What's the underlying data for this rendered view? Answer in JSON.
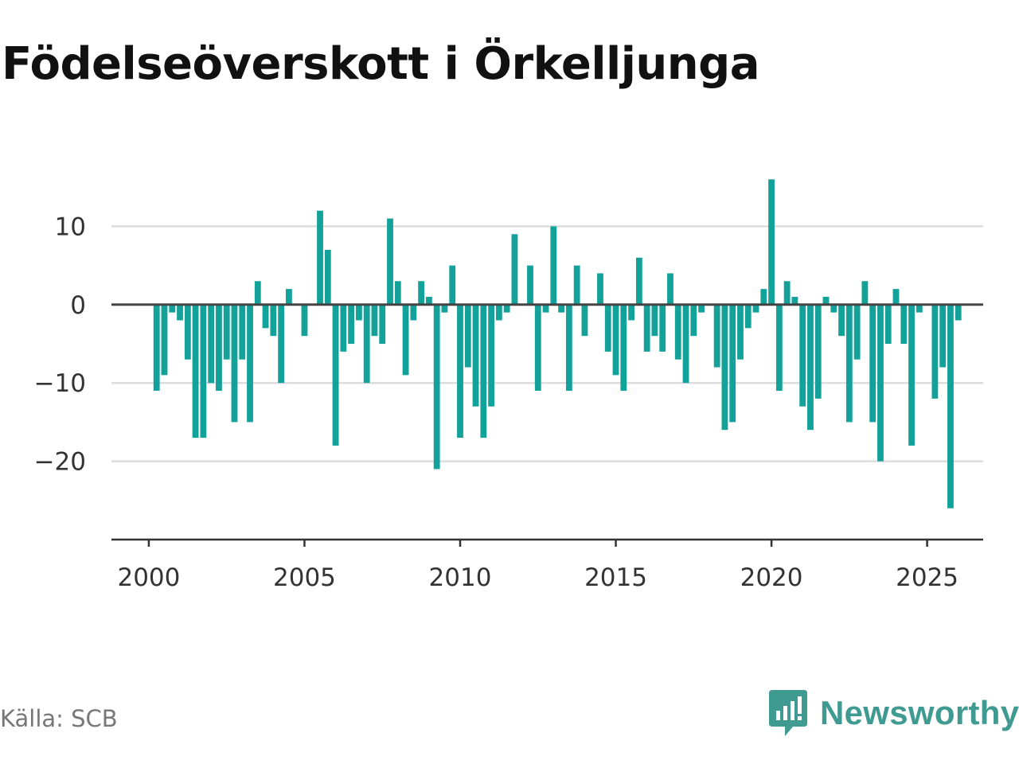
{
  "title": "Födelseöverskott i Örkelljunga",
  "source": "Källa: SCB",
  "brand": {
    "name": "Newsworthy",
    "icon": "newsworthy-logo-icon",
    "color": "#3f9a91"
  },
  "colors": {
    "bar": "#13a29a",
    "zero_line": "#444444",
    "grid": "#dddddd",
    "axis": "#333333"
  },
  "chart_data": {
    "type": "bar",
    "title": "Födelseöverskott i Örkelljunga",
    "xlabel": "",
    "ylabel": "",
    "x_ticks": [
      "2000",
      "2005",
      "2010",
      "2015",
      "2020",
      "2025"
    ],
    "y_ticks": [
      "10",
      "0",
      "−10",
      "−20"
    ],
    "ylim": [
      -30,
      20
    ],
    "xlim": [
      1998.8,
      2026.8
    ],
    "grid": true,
    "series": [
      {
        "start": "2000 Q2",
        "frequency": "quarterly",
        "values": [
          -11,
          -9,
          -1,
          -2,
          -7,
          -17,
          -17,
          -10,
          -11,
          -7,
          -15,
          -7,
          -15,
          3,
          -3,
          -4,
          -10,
          2,
          0,
          -4,
          0,
          12,
          7,
          -18,
          -6,
          -5,
          -2,
          -10,
          -4,
          -5,
          11,
          3,
          -9,
          -2,
          3,
          1,
          -21,
          -1,
          5,
          -17,
          -8,
          -13,
          -17,
          -13,
          -2,
          -1,
          9,
          0,
          5,
          -11,
          -1,
          10,
          -1,
          -11,
          5,
          -4,
          0,
          4,
          -6,
          -9,
          -11,
          -2,
          6,
          -6,
          -4,
          -6,
          4,
          -7,
          -10,
          -4,
          -1,
          0,
          -8,
          -16,
          -15,
          -7,
          -3,
          -1,
          2,
          16,
          -11,
          3,
          1,
          -13,
          -16,
          -12,
          1,
          -1,
          -4,
          -15,
          -7,
          3,
          -15,
          -20,
          -5,
          2,
          -5,
          -18,
          -1,
          0,
          -12,
          -8,
          -26,
          -2
        ]
      }
    ]
  }
}
